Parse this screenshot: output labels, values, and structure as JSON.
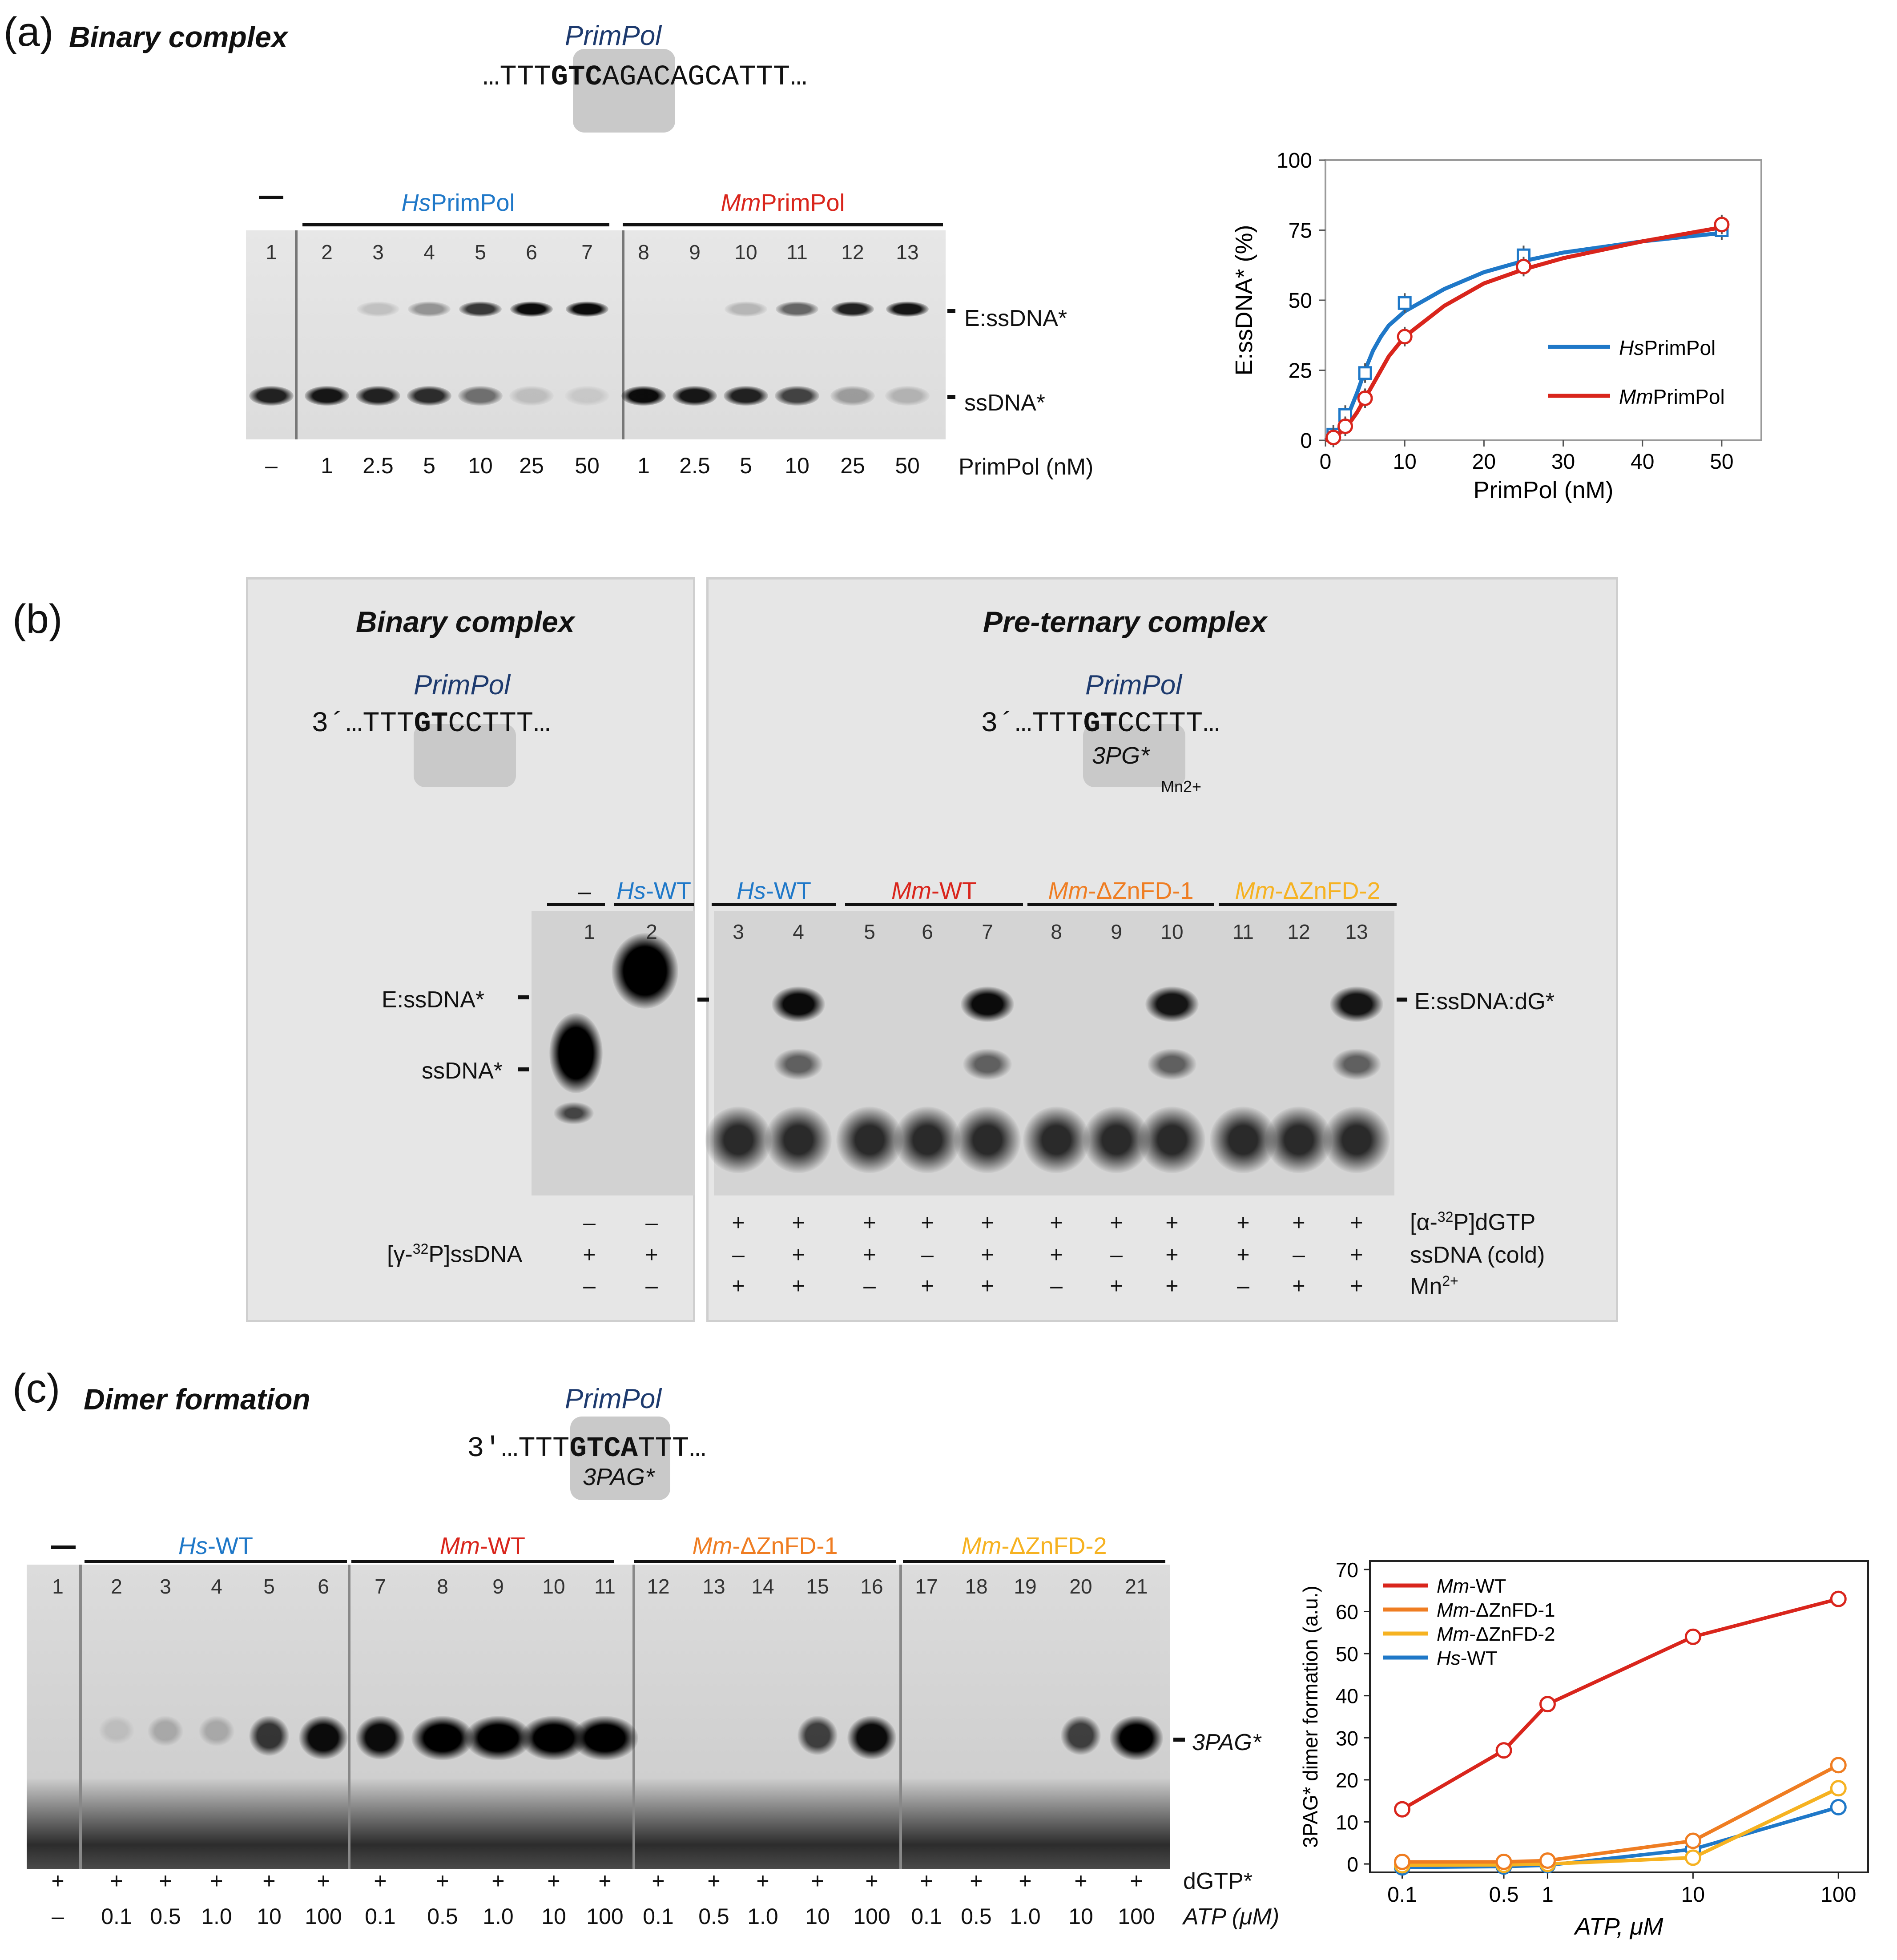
{
  "panel_a": {
    "label": "(a)",
    "title": "Binary complex",
    "primpol": "PrimPol",
    "seq_pre": "…TTT",
    "seq_bold": "GTC",
    "seq_post": "AGACAGCATTT…",
    "dash": "–",
    "hs_name": "Hs",
    "mm_name": "Mm",
    "enzyme_suffix": "PrimPol",
    "lanes": [
      "1",
      "2",
      "3",
      "4",
      "5",
      "6",
      "7",
      "8",
      "9",
      "10",
      "11",
      "12",
      "13"
    ],
    "conc": [
      "–",
      "1",
      "2.5",
      "5",
      "10",
      "25",
      "50",
      "1",
      "2.5",
      "5",
      "10",
      "25",
      "50"
    ],
    "conc_label": "PrimPol (nM)",
    "band_top": "E:ssDNA*",
    "band_bottom": "ssDNA*"
  },
  "panel_b": {
    "label": "(b)",
    "binary_title": "Binary complex",
    "ternary_title": "Pre-ternary complex",
    "primpol": "PrimPol",
    "seq_pre": "3´…TTT",
    "seq_bold": "GT",
    "seq_post": "CCTTT…",
    "nuc": "3PG*",
    "mn": "Mn2+",
    "dash": "–",
    "groups": [
      "Hs-WT",
      "Hs-WT",
      "Mm-WT",
      "Mm-ΔZnFD-1",
      "Mm-ΔZnFD-2"
    ],
    "lanes": [
      "1",
      "2",
      "3",
      "4",
      "5",
      "6",
      "7",
      "8",
      "9",
      "10",
      "11",
      "12",
      "13"
    ],
    "band_e": "E:ssDNA*",
    "band_s": "ssDNA*",
    "band_ternary": "E:ssDNA:dG*",
    "row_gamma_label": "[γ-32P]ssDNA",
    "row_gamma": [
      "+",
      "+"
    ],
    "row_top_left": [
      "–",
      "–"
    ],
    "row_bottom_left": [
      "–",
      "–"
    ],
    "row_dgtp_label": "[α-32P]dGTP",
    "row_dgtp": [
      "+",
      "+",
      "+",
      "+",
      "+",
      "+",
      "+",
      "+",
      "+",
      "+",
      "+"
    ],
    "row_cold_label": "ssDNA (cold)",
    "row_cold": [
      "–",
      "+",
      "+",
      "–",
      "+",
      "+",
      "–",
      "+",
      "+",
      "–",
      "+"
    ],
    "row_mn_label": "Mn2+",
    "row_mn": [
      "+",
      "+",
      "–",
      "+",
      "+",
      "–",
      "+",
      "+",
      "–",
      "+",
      "+"
    ]
  },
  "panel_c": {
    "label": "(c)",
    "title": "Dimer formation",
    "primpol": "PrimPol",
    "seq_pre": "3′…TTT",
    "seq_bold": "GTCA",
    "seq_post": "TTT…",
    "product": "3PAG*",
    "dash": "–",
    "groups": [
      "Hs-WT",
      "Mm-WT",
      "Mm-ΔZnFD-1",
      "Mm-ΔZnFD-2"
    ],
    "lanes": [
      "1",
      "2",
      "3",
      "4",
      "5",
      "6",
      "7",
      "8",
      "9",
      "10",
      "11",
      "12",
      "13",
      "14",
      "15",
      "16",
      "17",
      "18",
      "19",
      "20",
      "21"
    ],
    "dgtp_row": [
      "+",
      "+",
      "+",
      "+",
      "+",
      "+",
      "+",
      "+",
      "+",
      "+",
      "+",
      "+",
      "+",
      "+",
      "+",
      "+",
      "+",
      "+",
      "+",
      "+",
      "+"
    ],
    "dgtp_label": "dGTP*",
    "atp_row": [
      "–",
      "0.1",
      "0.5",
      "1.0",
      "10",
      "100",
      "0.1",
      "0.5",
      "1.0",
      "10",
      "100",
      "0.1",
      "0.5",
      "1.0",
      "10",
      "100",
      "0.1",
      "0.5",
      "1.0",
      "10",
      "100"
    ],
    "atp_label": "ATP (μM)"
  },
  "chart_data": [
    {
      "type": "line",
      "panel": "a",
      "xlabel": "PrimPol (nM)",
      "ylabel": "E:ssDNA* (%)",
      "xlim": [
        0,
        55
      ],
      "ylim": [
        0,
        100
      ],
      "xticks": [
        0,
        10,
        20,
        30,
        40,
        50
      ],
      "yticks": [
        0,
        25,
        50,
        75,
        100
      ],
      "x": [
        1,
        2.5,
        5,
        10,
        25,
        50
      ],
      "series": [
        {
          "name": "HsPrimPol",
          "prefix": "Hs",
          "suffix": "PrimPol",
          "color": "#1f78c8",
          "marker": "square",
          "values": [
            2,
            9,
            24,
            49,
            66,
            75
          ],
          "fit": [
            [
              0,
              0
            ],
            [
              1,
              2
            ],
            [
              2,
              5
            ],
            [
              3,
              10
            ],
            [
              4,
              17
            ],
            [
              5,
              25
            ],
            [
              6,
              32
            ],
            [
              7,
              37
            ],
            [
              8,
              41
            ],
            [
              10,
              46
            ],
            [
              15,
              54
            ],
            [
              20,
              60
            ],
            [
              25,
              64
            ],
            [
              30,
              67
            ],
            [
              40,
              71
            ],
            [
              50,
              74
            ]
          ]
        },
        {
          "name": "MmPrimPol",
          "prefix": "Mm",
          "suffix": "PrimPol",
          "color": "#d9251c",
          "marker": "circle",
          "values": [
            1,
            5,
            15,
            37,
            62,
            77
          ],
          "fit": [
            [
              0,
              0
            ],
            [
              1,
              1
            ],
            [
              2,
              3
            ],
            [
              3,
              6
            ],
            [
              4,
              10
            ],
            [
              5,
              15
            ],
            [
              6,
              20
            ],
            [
              7,
              25
            ],
            [
              8,
              30
            ],
            [
              10,
              37
            ],
            [
              15,
              48
            ],
            [
              20,
              56
            ],
            [
              25,
              61
            ],
            [
              30,
              65
            ],
            [
              40,
              71
            ],
            [
              50,
              76
            ]
          ]
        }
      ]
    },
    {
      "type": "line",
      "panel": "c",
      "xlabel": "ATP, μM",
      "ylabel": "3PAG* dimer formation (a.u.)",
      "x": [
        "0.1",
        "0.5",
        "1",
        "10",
        "100"
      ],
      "x_numeric": [
        0.1,
        0.5,
        1,
        10,
        100
      ],
      "ylim": [
        -2,
        72
      ],
      "yticks": [
        0,
        10,
        20,
        30,
        40,
        50,
        60,
        70
      ],
      "legend_position": "top-left",
      "series": [
        {
          "name": "Mm-WT",
          "prefix": "Mm",
          "suffix": "-WT",
          "color": "#d9251c",
          "values": [
            13,
            27,
            38,
            54,
            63
          ]
        },
        {
          "name": "Mm-ΔZnFD-1",
          "prefix": "Mm",
          "suffix": "-ΔZnFD-1",
          "color": "#ef7d22",
          "values": [
            0.5,
            0.5,
            0.8,
            5.5,
            23.5
          ]
        },
        {
          "name": "Mm-ΔZnFD-2",
          "prefix": "Mm",
          "suffix": "-ΔZnFD-2",
          "color": "#f6b221",
          "values": [
            -0.3,
            -0.2,
            0,
            1.5,
            18
          ]
        },
        {
          "name": "Hs-WT",
          "prefix": "Hs",
          "suffix": "-WT",
          "color": "#1f78c8",
          "values": [
            -0.8,
            -0.6,
            -0.3,
            3.5,
            13.5
          ]
        }
      ]
    }
  ]
}
